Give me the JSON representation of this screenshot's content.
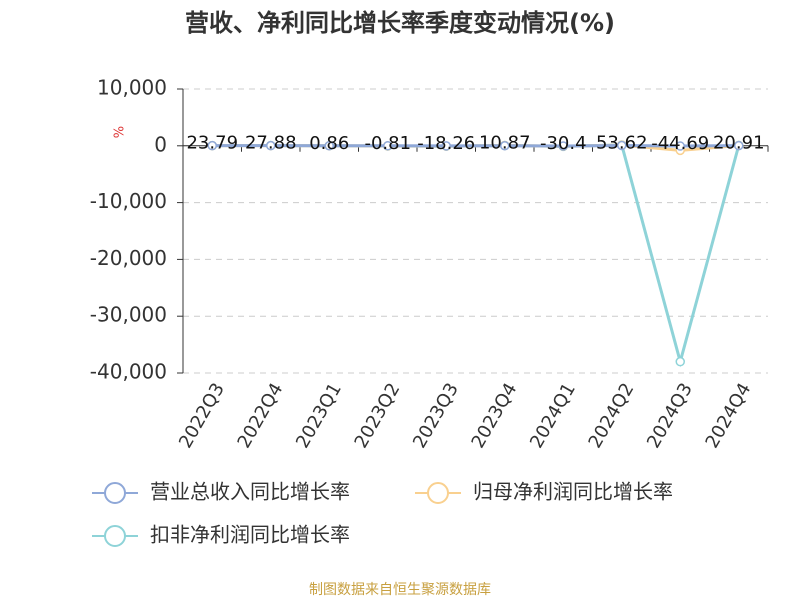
{
  "chart_data": {
    "type": "line",
    "title": "营收、净利同比增长率季度变动情况(%)",
    "y_label": "%",
    "source": "制图数据来自恒生聚源数据库",
    "categories": [
      "2022Q3",
      "2022Q4",
      "2023Q1",
      "2023Q2",
      "2023Q3",
      "2023Q4",
      "2024Q1",
      "2024Q2",
      "2024Q3",
      "2024Q4"
    ],
    "series": [
      {
        "name": "营业总收入同比增长率",
        "color": "#8fa8d8",
        "values": [
          23.79,
          27.88,
          0.86,
          -0.81,
          -18.26,
          10.87,
          -30.4,
          53.62,
          -44.69,
          20.91
        ]
      },
      {
        "name": "归母净利润同比增长率",
        "color": "#f9d08f",
        "values": [
          30,
          40,
          10,
          -20,
          -60,
          50,
          -90,
          120,
          -800,
          60
        ]
      },
      {
        "name": "扣非净利润同比增长率",
        "color": "#8ed3d8",
        "values": [
          35,
          45,
          15,
          -30,
          -70,
          60,
          -100,
          150,
          -38000,
          70
        ]
      }
    ],
    "ylim": [
      -40000,
      10000
    ],
    "yticks": [
      {
        "value": -40000,
        "label": "-40,000"
      },
      {
        "value": -30000,
        "label": "-30,000"
      },
      {
        "value": -20000,
        "label": "-20,000"
      },
      {
        "value": -10000,
        "label": "-10,000"
      },
      0,
      {
        "value": 10000,
        "label": "10,000"
      }
    ],
    "grid": true
  }
}
